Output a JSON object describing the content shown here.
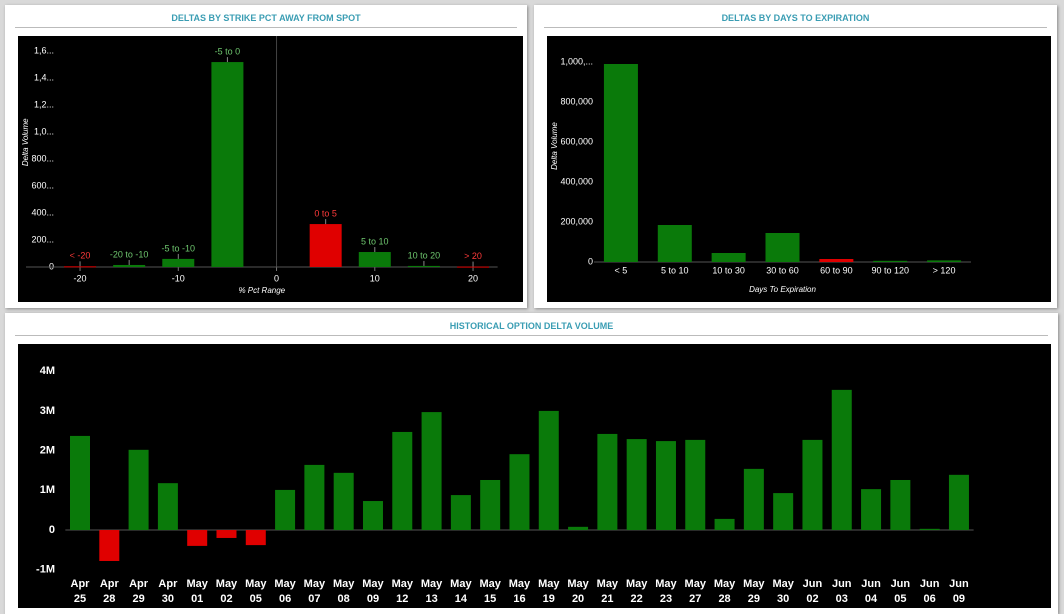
{
  "chart_data": [
    {
      "type": "bar",
      "title": "DELTAS BY STRIKE PCT AWAY FROM SPOT",
      "ylabel": "Delta Volume",
      "xlabel": "% Pct Range",
      "x": [
        -20,
        -15,
        -10,
        -5,
        5,
        10,
        15,
        20
      ],
      "bar_labels": [
        "< -20",
        "-20 to -10",
        "-5 to -10",
        "-5 to 0",
        "0 to 5",
        "5 to 10",
        "10 to 20",
        "> 20"
      ],
      "values": [
        5000,
        15000,
        60000,
        1518000,
        318000,
        111000,
        8000,
        3000
      ],
      "colors": [
        "#e00000",
        "#0a7a0a",
        "#0a7a0a",
        "#0a7a0a",
        "#e00000",
        "#0a7a0a",
        "#0a7a0a",
        "#e00000"
      ],
      "xlim": [
        -25.5,
        22.5
      ],
      "xticks": [
        -20,
        -10,
        0,
        10,
        20
      ],
      "ylim": [
        0,
        1700000
      ],
      "yticks": [
        0,
        {
          "value": 200000,
          "label": "200..."
        },
        {
          "value": 400000,
          "label": "400..."
        },
        {
          "value": 600000,
          "label": "600..."
        },
        {
          "value": 800000,
          "label": "800..."
        },
        {
          "value": 1000000,
          "label": "1,0..."
        },
        {
          "value": 1200000,
          "label": "1,2..."
        },
        {
          "value": 1400000,
          "label": "1,4..."
        },
        {
          "value": 1600000,
          "label": "1,6..."
        }
      ]
    },
    {
      "type": "bar",
      "title": "DELTAS BY DAYS TO EXPIRATION",
      "ylabel": "Delta Volume",
      "xlabel": "Days To Expiration",
      "categories": [
        "< 5",
        "5 to 10",
        "10 to 30",
        "30 to 60",
        "60 to 90",
        "90 to 120",
        "> 120"
      ],
      "values": [
        990000,
        185000,
        45000,
        145000,
        15000,
        6000,
        8000
      ],
      "colors": [
        "#0a7a0a",
        "#0a7a0a",
        "#0a7a0a",
        "#0a7a0a",
        "#e00000",
        "#0a7a0a",
        "#0a7a0a"
      ],
      "ylim": [
        0,
        1060000
      ],
      "yticks": [
        0,
        {
          "value": 200000,
          "label": "200,000"
        },
        {
          "value": 400000,
          "label": "400,000"
        },
        {
          "value": 600000,
          "label": "600,000"
        },
        {
          "value": 800000,
          "label": "800,000"
        },
        {
          "value": 1000000,
          "label": "1,000,..."
        }
      ]
    },
    {
      "type": "bar",
      "title": "HISTORICAL OPTION DELTA VOLUME",
      "categories": [
        "Apr 25",
        "Apr 28",
        "Apr 29",
        "Apr 30",
        "May 01",
        "May 02",
        "May 05",
        "May 06",
        "May 07",
        "May 08",
        "May 09",
        "May 12",
        "May 13",
        "May 14",
        "May 15",
        "May 16",
        "May 19",
        "May 20",
        "May 21",
        "May 22",
        "May 23",
        "May 27",
        "May 28",
        "May 29",
        "May 30",
        "Jun 02",
        "Jun 03",
        "Jun 04",
        "Jun 05",
        "Jun 06",
        "Jun 09"
      ],
      "values": [
        2370000,
        -780000,
        2020000,
        1180000,
        -400000,
        -200000,
        -380000,
        1010000,
        1640000,
        1440000,
        730000,
        2470000,
        2970000,
        880000,
        1260000,
        1910000,
        3000000,
        80000,
        2420000,
        2290000,
        2240000,
        2270000,
        280000,
        1540000,
        930000,
        2270000,
        3530000,
        1030000,
        1260000,
        30000,
        1390000
      ],
      "colors": [
        "#0a7a0a",
        "#e00000",
        "#0a7a0a",
        "#0a7a0a",
        "#e00000",
        "#e00000",
        "#e00000",
        "#0a7a0a",
        "#0a7a0a",
        "#0a7a0a",
        "#0a7a0a",
        "#0a7a0a",
        "#0a7a0a",
        "#0a7a0a",
        "#0a7a0a",
        "#0a7a0a",
        "#0a7a0a",
        "#0a7a0a",
        "#0a7a0a",
        "#0a7a0a",
        "#0a7a0a",
        "#0a7a0a",
        "#0a7a0a",
        "#0a7a0a",
        "#0a7a0a",
        "#0a7a0a",
        "#0a7a0a",
        "#0a7a0a",
        "#0a7a0a",
        "#0a7a0a",
        "#0a7a0a"
      ],
      "ylim": [
        -1400000,
        4650000
      ],
      "yticks": [
        {
          "value": -1000000,
          "label": "-1M"
        },
        0,
        {
          "value": 1000000,
          "label": "1M"
        },
        {
          "value": 2000000,
          "label": "2M"
        },
        {
          "value": 3000000,
          "label": "3M"
        },
        {
          "value": 4000000,
          "label": "4M"
        }
      ]
    }
  ]
}
